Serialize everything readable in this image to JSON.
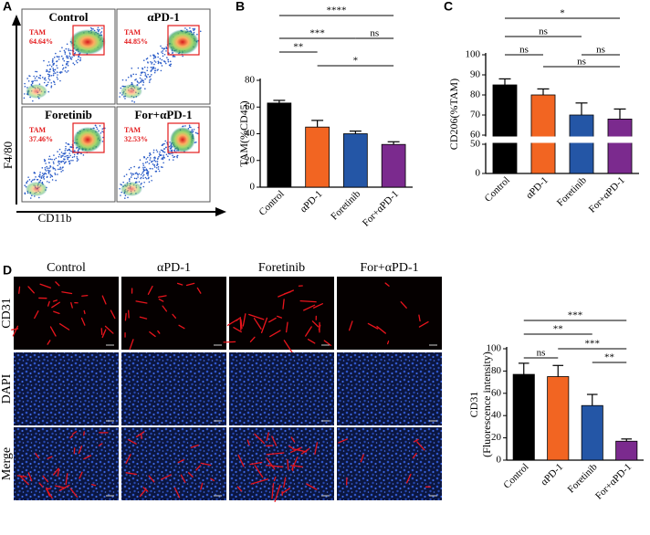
{
  "panel_labels": {
    "a": "A",
    "b": "B",
    "c": "C",
    "d": "D"
  },
  "flow": {
    "y_label": "F4/80",
    "x_label": "CD11b",
    "plots": [
      {
        "title": "Control",
        "gate": "TAM",
        "percent": "64.64%"
      },
      {
        "title": "αPD-1",
        "gate": "TAM",
        "percent": "44.85%"
      },
      {
        "title": "Foretinib",
        "gate": "TAM",
        "percent": "37.46%"
      },
      {
        "title": "For+αPD-1",
        "gate": "TAM",
        "percent": "32.53%"
      }
    ]
  },
  "micrographs": {
    "columns": [
      "Control",
      "αPD-1",
      "Foretinib",
      "For+αPD-1"
    ],
    "rows": [
      "CD31",
      "DAPI",
      "Merge"
    ]
  },
  "chart_data": [
    {
      "type": "bar",
      "ylabel": "TAM(%CD45)",
      "categories": [
        "Control",
        "αPD-1",
        "Foretinib",
        "For+αPD-1"
      ],
      "values": [
        63,
        45,
        40,
        32
      ],
      "errors": [
        2,
        5,
        2,
        2
      ],
      "colors": [
        "#000000",
        "#f26522",
        "#2456a6",
        "#7b2a8e"
      ],
      "ylim": [
        0,
        80
      ],
      "yticks": [
        0,
        20,
        40,
        60,
        80
      ],
      "significance": [
        {
          "pair": [
            "Control",
            "For+αPD-1"
          ],
          "label": "****"
        },
        {
          "pair": [
            "Control",
            "Foretinib"
          ],
          "label": "***"
        },
        {
          "pair": [
            "Foretinib",
            "For+αPD-1"
          ],
          "label": "ns"
        },
        {
          "pair": [
            "Control",
            "αPD-1"
          ],
          "label": "**"
        },
        {
          "pair": [
            "αPD-1",
            "For+αPD-1"
          ],
          "label": "*"
        }
      ]
    },
    {
      "type": "bar",
      "ylabel": "CD206(%TAM)",
      "categories": [
        "Control",
        "αPD-1",
        "Foretinib",
        "For+αPD-1"
      ],
      "values": [
        85,
        80,
        70,
        68
      ],
      "errors": [
        3,
        3,
        6,
        5
      ],
      "colors": [
        "#000000",
        "#f26522",
        "#2456a6",
        "#7b2a8e"
      ],
      "ylim": [
        0,
        100
      ],
      "y_break": [
        50,
        60
      ],
      "yticks": [
        0,
        50,
        60,
        70,
        80,
        90,
        100
      ],
      "significance": [
        {
          "pair": [
            "Control",
            "For+αPD-1"
          ],
          "label": "*"
        },
        {
          "pair": [
            "Control",
            "Foretinib"
          ],
          "label": "ns"
        },
        {
          "pair": [
            "Control",
            "αPD-1"
          ],
          "label": "ns"
        },
        {
          "pair": [
            "Foretinib",
            "For+αPD-1"
          ],
          "label": "ns"
        },
        {
          "pair": [
            "αPD-1",
            "For+αPD-1"
          ],
          "label": "ns"
        }
      ]
    },
    {
      "type": "bar",
      "ylabel": [
        "CD31",
        "(Fluorescence intensity)"
      ],
      "categories": [
        "Control",
        "αPD-1",
        "Foretinib",
        "For+αPD-1"
      ],
      "values": [
        77,
        75,
        49,
        17
      ],
      "errors": [
        10,
        10,
        10,
        2
      ],
      "colors": [
        "#000000",
        "#f26522",
        "#2456a6",
        "#7b2a8e"
      ],
      "ylim": [
        0,
        100
      ],
      "yticks": [
        0,
        20,
        40,
        60,
        80,
        100
      ],
      "significance": [
        {
          "pair": [
            "Control",
            "For+αPD-1"
          ],
          "label": "***"
        },
        {
          "pair": [
            "Control",
            "Foretinib"
          ],
          "label": "**"
        },
        {
          "pair": [
            "αPD-1",
            "For+αPD-1"
          ],
          "label": "***"
        },
        {
          "pair": [
            "Control",
            "αPD-1"
          ],
          "label": "ns"
        },
        {
          "pair": [
            "Foretinib",
            "For+αPD-1"
          ],
          "label": "**"
        }
      ]
    }
  ]
}
